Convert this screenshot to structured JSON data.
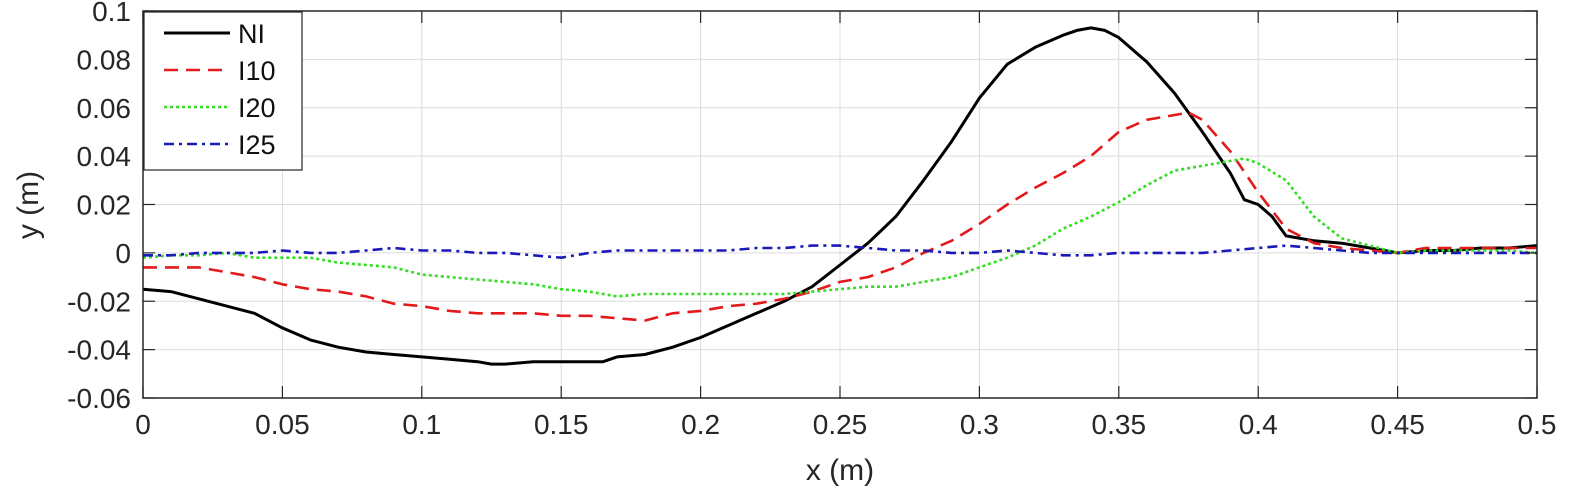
{
  "chart_data": {
    "type": "line",
    "title": "",
    "xlabel": "x (m)",
    "ylabel": "y (m)",
    "xlim": [
      0,
      0.5
    ],
    "ylim": [
      -0.06,
      0.1
    ],
    "x_ticks": [
      "0",
      "0.05",
      "0.1",
      "0.15",
      "0.2",
      "0.25",
      "0.3",
      "0.35",
      "0.4",
      "0.45",
      "0.5"
    ],
    "y_ticks": [
      "-0.06",
      "-0.04",
      "-0.02",
      "0",
      "0.02",
      "0.04",
      "0.06",
      "0.08",
      "0.1"
    ],
    "grid": true,
    "legend_position": "top-left",
    "series": [
      {
        "name": "NI",
        "color": "#000000",
        "style": "solid",
        "x": [
          0,
          0.01,
          0.02,
          0.03,
          0.04,
          0.05,
          0.06,
          0.07,
          0.08,
          0.09,
          0.1,
          0.11,
          0.12,
          0.125,
          0.13,
          0.14,
          0.15,
          0.16,
          0.165,
          0.17,
          0.18,
          0.19,
          0.2,
          0.21,
          0.22,
          0.23,
          0.24,
          0.25,
          0.26,
          0.27,
          0.28,
          0.29,
          0.3,
          0.31,
          0.32,
          0.33,
          0.335,
          0.34,
          0.345,
          0.35,
          0.36,
          0.37,
          0.38,
          0.39,
          0.395,
          0.4,
          0.405,
          0.41,
          0.42,
          0.43,
          0.44,
          0.45,
          0.46,
          0.47,
          0.48,
          0.49,
          0.5
        ],
        "values": [
          -0.015,
          -0.016,
          -0.019,
          -0.022,
          -0.025,
          -0.031,
          -0.036,
          -0.039,
          -0.041,
          -0.042,
          -0.043,
          -0.044,
          -0.045,
          -0.046,
          -0.046,
          -0.045,
          -0.045,
          -0.045,
          -0.045,
          -0.043,
          -0.042,
          -0.039,
          -0.035,
          -0.03,
          -0.025,
          -0.02,
          -0.014,
          -0.005,
          0.004,
          0.015,
          0.03,
          0.046,
          0.064,
          0.078,
          0.085,
          0.09,
          0.092,
          0.093,
          0.092,
          0.089,
          0.079,
          0.066,
          0.05,
          0.033,
          0.022,
          0.02,
          0.015,
          0.007,
          0.005,
          0.004,
          0.002,
          0.0,
          0.001,
          0.001,
          0.002,
          0.002,
          0.003
        ]
      },
      {
        "name": "I10",
        "color": "#e31a1c",
        "style": "dashed",
        "x": [
          0,
          0.01,
          0.02,
          0.03,
          0.04,
          0.05,
          0.06,
          0.07,
          0.08,
          0.09,
          0.1,
          0.11,
          0.12,
          0.13,
          0.14,
          0.15,
          0.16,
          0.17,
          0.18,
          0.19,
          0.2,
          0.21,
          0.22,
          0.23,
          0.24,
          0.25,
          0.26,
          0.27,
          0.28,
          0.29,
          0.3,
          0.31,
          0.32,
          0.33,
          0.34,
          0.35,
          0.36,
          0.37,
          0.375,
          0.38,
          0.39,
          0.4,
          0.41,
          0.42,
          0.43,
          0.44,
          0.45,
          0.46,
          0.47,
          0.48,
          0.49,
          0.5
        ],
        "values": [
          -0.006,
          -0.006,
          -0.006,
          -0.008,
          -0.01,
          -0.013,
          -0.015,
          -0.016,
          -0.018,
          -0.021,
          -0.022,
          -0.024,
          -0.025,
          -0.025,
          -0.025,
          -0.026,
          -0.026,
          -0.027,
          -0.028,
          -0.025,
          -0.024,
          -0.022,
          -0.021,
          -0.019,
          -0.016,
          -0.012,
          -0.01,
          -0.006,
          0.0,
          0.005,
          0.012,
          0.02,
          0.027,
          0.033,
          0.04,
          0.05,
          0.055,
          0.057,
          0.058,
          0.055,
          0.042,
          0.025,
          0.01,
          0.004,
          0.002,
          0.001,
          0.0,
          0.002,
          0.002,
          0.002,
          0.002,
          0.002
        ]
      },
      {
        "name": "I20",
        "color": "#33dd22",
        "style": "dotted",
        "x": [
          0,
          0.01,
          0.02,
          0.03,
          0.04,
          0.05,
          0.06,
          0.07,
          0.08,
          0.09,
          0.1,
          0.11,
          0.12,
          0.13,
          0.14,
          0.15,
          0.16,
          0.17,
          0.18,
          0.19,
          0.2,
          0.21,
          0.22,
          0.23,
          0.24,
          0.25,
          0.26,
          0.27,
          0.28,
          0.29,
          0.3,
          0.31,
          0.32,
          0.33,
          0.34,
          0.35,
          0.36,
          0.37,
          0.38,
          0.39,
          0.395,
          0.4,
          0.41,
          0.42,
          0.43,
          0.44,
          0.45,
          0.46,
          0.47,
          0.48,
          0.49,
          0.5
        ],
        "values": [
          -0.002,
          -0.001,
          -0.001,
          0.0,
          -0.002,
          -0.002,
          -0.002,
          -0.004,
          -0.005,
          -0.006,
          -0.009,
          -0.01,
          -0.011,
          -0.012,
          -0.013,
          -0.015,
          -0.016,
          -0.018,
          -0.017,
          -0.017,
          -0.017,
          -0.017,
          -0.017,
          -0.017,
          -0.016,
          -0.015,
          -0.014,
          -0.014,
          -0.012,
          -0.01,
          -0.006,
          -0.002,
          0.003,
          0.01,
          0.015,
          0.021,
          0.028,
          0.034,
          0.036,
          0.038,
          0.039,
          0.037,
          0.03,
          0.015,
          0.006,
          0.003,
          0.0,
          0.001,
          0.001,
          0.001,
          0.001,
          0.0
        ]
      },
      {
        "name": "I25",
        "color": "#1a1ab8",
        "style": "dashdot",
        "x": [
          0,
          0.01,
          0.02,
          0.03,
          0.04,
          0.05,
          0.06,
          0.07,
          0.08,
          0.09,
          0.1,
          0.11,
          0.12,
          0.13,
          0.14,
          0.15,
          0.16,
          0.17,
          0.18,
          0.19,
          0.2,
          0.21,
          0.22,
          0.23,
          0.24,
          0.25,
          0.26,
          0.27,
          0.28,
          0.29,
          0.3,
          0.31,
          0.32,
          0.33,
          0.34,
          0.35,
          0.36,
          0.37,
          0.38,
          0.39,
          0.4,
          0.41,
          0.42,
          0.43,
          0.44,
          0.45,
          0.46,
          0.47,
          0.48,
          0.49,
          0.5
        ],
        "values": [
          -0.001,
          -0.001,
          0.0,
          0.0,
          0.0,
          0.001,
          0.0,
          0.0,
          0.001,
          0.002,
          0.001,
          0.001,
          0.0,
          0.0,
          -0.001,
          -0.002,
          0.0,
          0.001,
          0.001,
          0.001,
          0.001,
          0.001,
          0.002,
          0.002,
          0.003,
          0.003,
          0.002,
          0.001,
          0.001,
          0.0,
          0.0,
          0.001,
          0.0,
          -0.001,
          -0.001,
          0.0,
          0.0,
          0.0,
          0.0,
          0.001,
          0.002,
          0.003,
          0.002,
          0.001,
          0.0,
          0.0,
          0.0,
          0.0,
          0.0,
          0.0,
          0.0
        ]
      }
    ]
  }
}
